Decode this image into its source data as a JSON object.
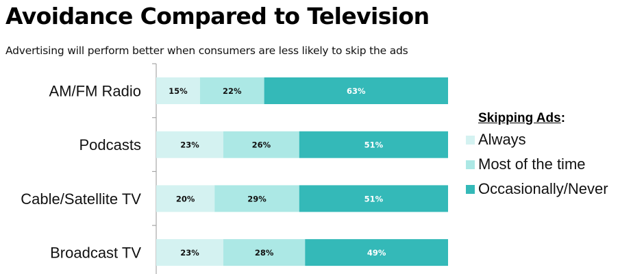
{
  "header": {
    "title": "Avoidance Compared to Television",
    "subtitle": "Advertising will perform better when consumers are less likely to skip the ads"
  },
  "legend": {
    "title": "Skipping Ads",
    "colon": ":"
  },
  "chart_data": {
    "type": "bar",
    "orientation": "horizontal",
    "stacked": true,
    "normalized": true,
    "title": "Avoidance Compared to Television",
    "subtitle": "Advertising will perform better when consumers are less likely to skip the ads",
    "xlabel": "",
    "ylabel": "",
    "xlim": [
      0,
      100
    ],
    "grid": false,
    "legend_title": "Skipping Ads:",
    "legend_position": "right",
    "categories": [
      "AM/FM Radio",
      "Podcasts",
      "Cable/Satellite TV",
      "Broadcast TV"
    ],
    "series": [
      {
        "name": "Always",
        "color": "#d4f2f1",
        "label_color": "#111111",
        "values": [
          15,
          23,
          20,
          23
        ]
      },
      {
        "name": "Most of the time",
        "color": "#ace8e5",
        "label_color": "#111111",
        "values": [
          22,
          26,
          29,
          28
        ]
      },
      {
        "name": "Occasionally/Never",
        "color": "#34b9b8",
        "label_color": "#ffffff",
        "values": [
          63,
          51,
          51,
          49
        ]
      }
    ],
    "value_format": "{v}%"
  }
}
